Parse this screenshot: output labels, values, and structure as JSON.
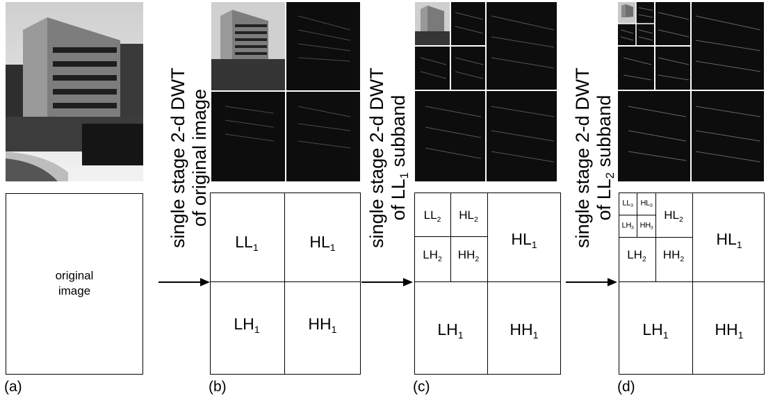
{
  "captions": {
    "a": "(a)",
    "b": "(b)",
    "c": "(c)",
    "d": "(d)"
  },
  "original": {
    "line1": "original",
    "line2": "image"
  },
  "steps": {
    "s1": {
      "line1": "single stage 2-d DWT",
      "line2": "of original image"
    },
    "s2": {
      "line1": "single stage 2-d DWT",
      "line2_prefix": "of LL",
      "line2_sub": "1",
      "line2_suffix": " subband"
    },
    "s3": {
      "line1": "single stage 2-d DWT",
      "line2_prefix": "of LL",
      "line2_sub": "2",
      "line2_suffix": " subband"
    }
  },
  "subbands": {
    "ll": "LL",
    "hl": "HL",
    "lh": "LH",
    "hh": "HH",
    "l1": "1",
    "l2": "2",
    "l3": "3"
  },
  "colors": {
    "photo_bg": "#0d0d0d",
    "line": "#000000"
  }
}
